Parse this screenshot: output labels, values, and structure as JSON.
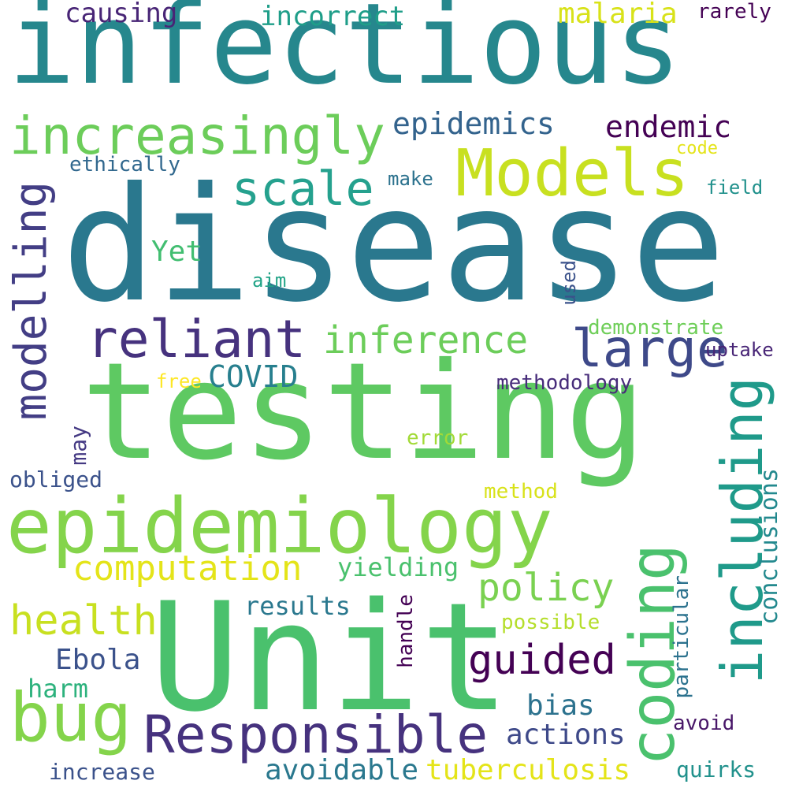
{
  "words": [
    {
      "text": "infectious",
      "color": "#26878d"
    },
    {
      "text": "disease",
      "color": "#2a788e"
    },
    {
      "text": "testing",
      "color": "#5ec962"
    },
    {
      "text": "Unit",
      "color": "#4ac16d"
    },
    {
      "text": "epidemiology",
      "color": "#84d44b"
    },
    {
      "text": "increasingly",
      "color": "#6ccd5a"
    },
    {
      "text": "Models",
      "color": "#c8e020"
    },
    {
      "text": "scale",
      "color": "#25a18e"
    },
    {
      "text": "reliant",
      "color": "#46327e"
    },
    {
      "text": "large",
      "color": "#3e4989"
    },
    {
      "text": "inference",
      "color": "#6ccd5a"
    },
    {
      "text": "modelling",
      "color": "#433e85"
    },
    {
      "text": "including",
      "color": "#1f9a8a"
    },
    {
      "text": "coding",
      "color": "#4ac16d"
    },
    {
      "text": "bug",
      "color": "#84d44b"
    },
    {
      "text": "Responsible",
      "color": "#46327e"
    },
    {
      "text": "computation",
      "color": "#e4e419"
    },
    {
      "text": "policy",
      "color": "#7ad151"
    },
    {
      "text": "guided",
      "color": "#440154"
    },
    {
      "text": "health",
      "color": "#c8e020"
    },
    {
      "text": "epidemics",
      "color": "#33638d"
    },
    {
      "text": "endemic",
      "color": "#440154"
    },
    {
      "text": "malaria",
      "color": "#d8e219"
    },
    {
      "text": "causing",
      "color": "#482576"
    },
    {
      "text": "incorrect",
      "color": "#1f9e89"
    },
    {
      "text": "rarely",
      "color": "#440154"
    },
    {
      "text": "ethically",
      "color": "#31688e"
    },
    {
      "text": "make",
      "color": "#2c728e"
    },
    {
      "text": "code",
      "color": "#e4e419"
    },
    {
      "text": "field",
      "color": "#21918c"
    },
    {
      "text": "Yet",
      "color": "#42be71"
    },
    {
      "text": "aim",
      "color": "#20a386"
    },
    {
      "text": "used",
      "color": "#3b528b"
    },
    {
      "text": "demonstrate",
      "color": "#6ece58"
    },
    {
      "text": "uptake",
      "color": "#482576"
    },
    {
      "text": "COVID",
      "color": "#277f8e"
    },
    {
      "text": "free",
      "color": "#fde725"
    },
    {
      "text": "methodology",
      "color": "#472c7a"
    },
    {
      "text": "may",
      "color": "#443983"
    },
    {
      "text": "error",
      "color": "#a2da37"
    },
    {
      "text": "obliged",
      "color": "#3b528b"
    },
    {
      "text": "method",
      "color": "#d8e219"
    },
    {
      "text": "yielding",
      "color": "#4ac16d"
    },
    {
      "text": "conclusions",
      "color": "#23898e"
    },
    {
      "text": "results",
      "color": "#2a788e"
    },
    {
      "text": "handle",
      "color": "#440154"
    },
    {
      "text": "particular",
      "color": "#2c728e"
    },
    {
      "text": "possible",
      "color": "#b5de2b"
    },
    {
      "text": "Ebola",
      "color": "#3b528b"
    },
    {
      "text": "harm",
      "color": "#2db27d"
    },
    {
      "text": "bias",
      "color": "#2c728e"
    },
    {
      "text": "actions",
      "color": "#3e4989"
    },
    {
      "text": "avoid",
      "color": "#481668"
    },
    {
      "text": "avoidable",
      "color": "#2a788e"
    },
    {
      "text": "tuberculosis",
      "color": "#e4e419"
    },
    {
      "text": "increase",
      "color": "#3b528b"
    },
    {
      "text": "quirks",
      "color": "#21918c"
    }
  ]
}
